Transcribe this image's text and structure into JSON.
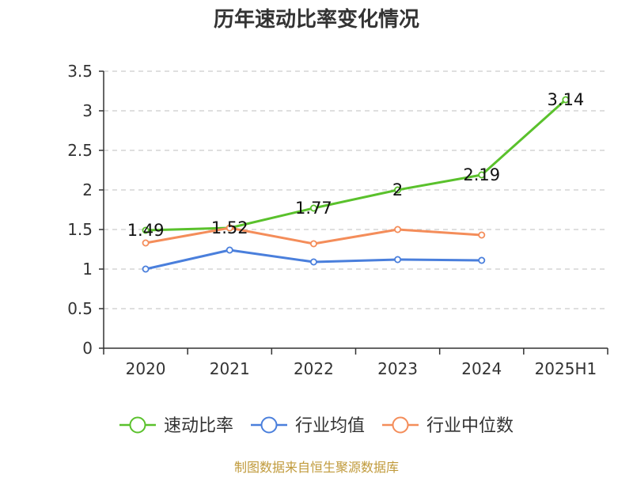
{
  "chart_data": {
    "type": "line",
    "title": "历年速动比率变化情况",
    "categories": [
      "2020",
      "2021",
      "2022",
      "2023",
      "2024",
      "2025H1"
    ],
    "ylim": [
      0,
      3.5
    ],
    "yticks": [
      "0",
      "0.5",
      "1",
      "1.5",
      "2",
      "2.5",
      "3",
      "3.5"
    ],
    "grid": true,
    "legend_position": "bottom",
    "series": [
      {
        "name": "速动比率",
        "color": "#5ac12c",
        "values": [
          1.49,
          1.52,
          1.77,
          2.0,
          2.19,
          3.14
        ],
        "labels": [
          "1.49",
          "1.52",
          "1.77",
          "2",
          "2.19",
          "3.14"
        ]
      },
      {
        "name": "行业均值",
        "color": "#4a7fdc",
        "values": [
          1.0,
          1.24,
          1.09,
          1.12,
          1.11,
          null
        ]
      },
      {
        "name": "行业中位数",
        "color": "#f48d5a",
        "values": [
          1.33,
          1.52,
          1.32,
          1.5,
          1.43,
          null
        ]
      }
    ]
  },
  "footer": {
    "source": "制图数据来自恒生聚源数据库"
  }
}
